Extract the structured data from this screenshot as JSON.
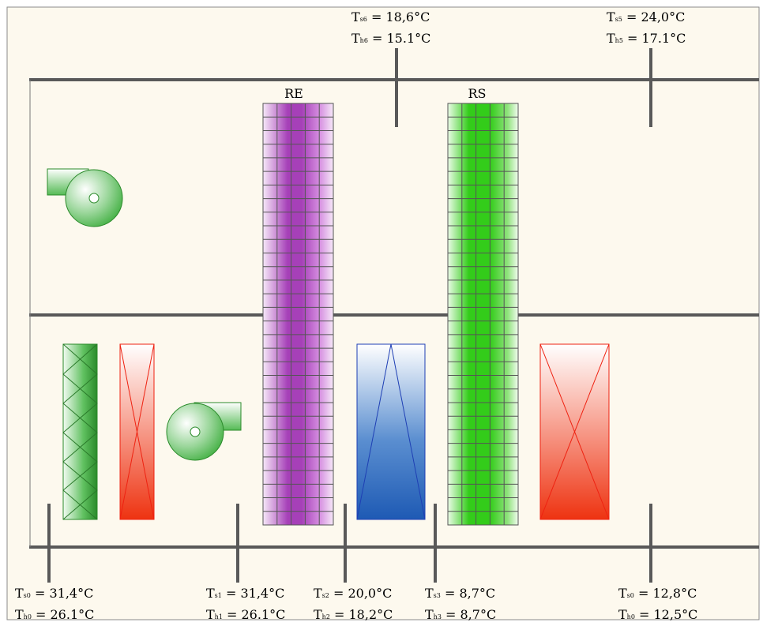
{
  "diagram": {
    "background": "#fdf9ee",
    "duct_color": "#595959",
    "sections": [
      {
        "id": "RE",
        "label": "RE",
        "color": "#a640b8"
      },
      {
        "id": "RS",
        "label": "RS",
        "color": "#33cc1a"
      }
    ],
    "sensors": [
      {
        "id": "s6",
        "ts_sub": "s6",
        "ts_val": "18,6°C",
        "th_sub": "h6",
        "th_val": "15.1°C"
      },
      {
        "id": "s5",
        "ts_sub": "s5",
        "ts_val": "24,0°C",
        "th_sub": "h5",
        "th_val": "17.1°C"
      },
      {
        "id": "in",
        "ts_sub": "s0",
        "ts_val": "31,4°C",
        "th_sub": "h0",
        "th_val": "26.1°C"
      },
      {
        "id": "s1",
        "ts_sub": "s1",
        "ts_val": "31,4°C",
        "th_sub": "h1",
        "th_val": "26.1°C"
      },
      {
        "id": "s2",
        "ts_sub": "s2",
        "ts_val": "20,0°C",
        "th_sub": "h2",
        "th_val": "18,2°C"
      },
      {
        "id": "s3",
        "ts_sub": "s3",
        "ts_val": "8,7°C",
        "th_sub": "h3",
        "th_val": "8,7°C"
      },
      {
        "id": "out",
        "ts_sub": "s0",
        "ts_val": "12,8°C",
        "th_sub": "h0",
        "th_val": "12,5°C"
      }
    ],
    "components": {
      "filter_color": "#2a8a2a",
      "heater_color": "#ee2211",
      "cooler_color": "#1e5ab4",
      "fan_color": "#4db84d"
    }
  }
}
